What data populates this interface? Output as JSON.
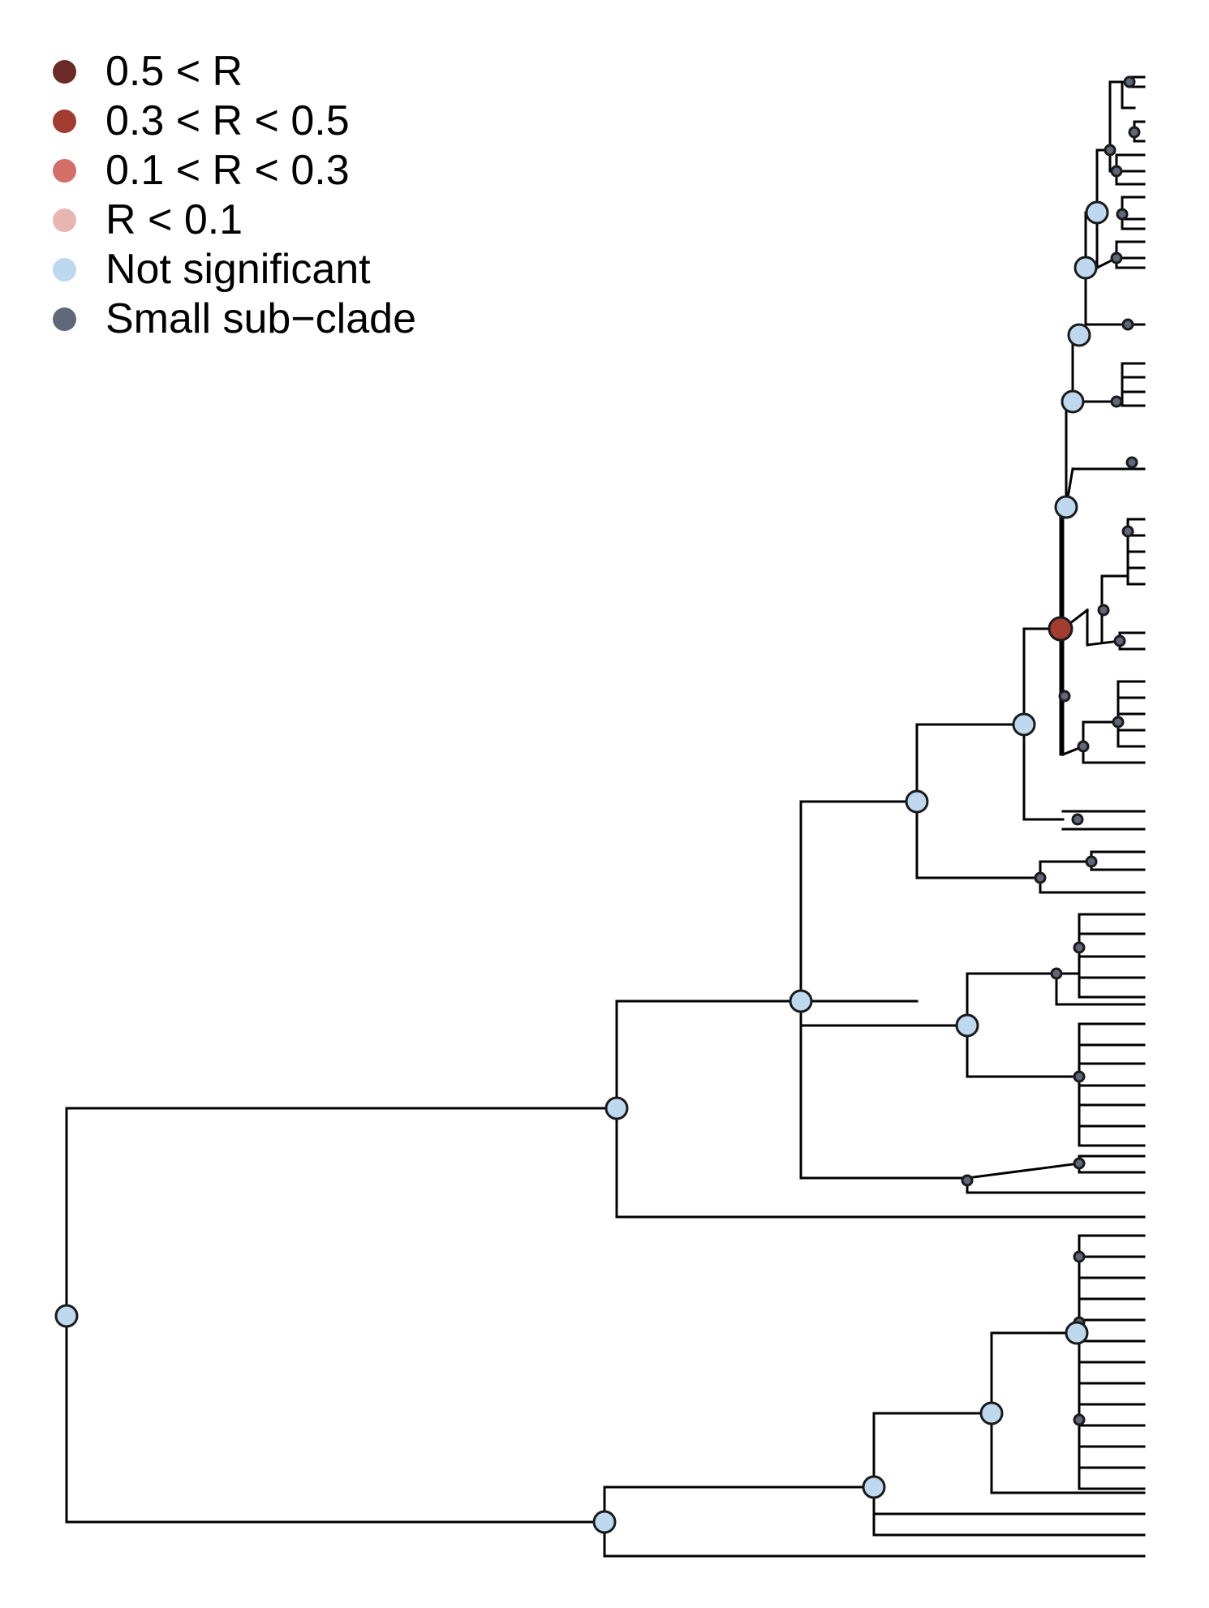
{
  "colors": {
    "r_gt_0_5": "#6b2a26",
    "r_0_3_0_5": "#a23b30",
    "r_0_1_0_3": "#d36f66",
    "r_lt_0_1": "#e7b6b0",
    "not_significant": "#bdd8ef",
    "small_sub_clade": "#5f6878",
    "branch": "#000000"
  },
  "legend": {
    "items": [
      {
        "label": "0.5 < R",
        "color": "#6b2a26"
      },
      {
        "label": "0.3 < R < 0.5",
        "color": "#a23b30"
      },
      {
        "label": "0.1 < R < 0.3",
        "color": "#d36f66"
      },
      {
        "label": "R < 0.1",
        "color": "#e7b6b0"
      },
      {
        "label": "Not significant",
        "color": "#bdd8ef"
      },
      {
        "label": "Small sub−clade",
        "color": "#5f6878"
      }
    ]
  },
  "tree": {
    "leaf_count": 76,
    "node_status_legend_keys": [
      "0.5 < R",
      "0.3 < R < 0.5",
      "0.1 < R < 0.3",
      "R < 0.1",
      "Not significant",
      "Small sub−clade"
    ]
  }
}
